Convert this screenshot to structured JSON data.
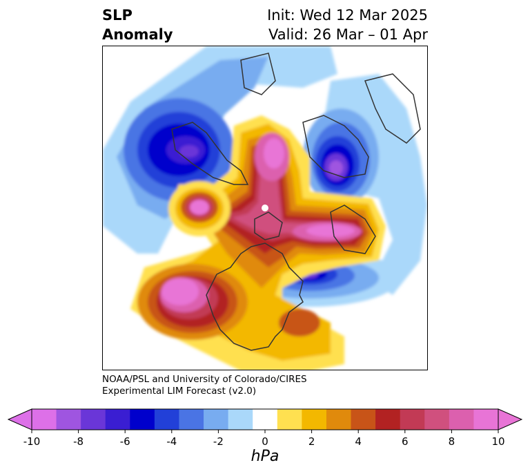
{
  "title": {
    "left_line1": "SLP",
    "left_line2": "Anomaly",
    "right_line1": "Init: Wed 12 Mar 2025",
    "right_line2": "Valid: 26 Mar – 01 Apr"
  },
  "credit": {
    "line1": "NOAA/PSL and University of Colorado/CIRES",
    "line2": "Experimental LIM Forecast (v2.0)"
  },
  "colorbar": {
    "unit": "hPa",
    "ticks": [
      "-10",
      "-8",
      "-6",
      "-4",
      "-2",
      "0",
      "2",
      "4",
      "6",
      "8",
      "10"
    ],
    "colors": [
      "#dd70e8",
      "#9f55e0",
      "#6a36d8",
      "#3a1ed2",
      "#0000cc",
      "#2240d8",
      "#4a74e4",
      "#78acf0",
      "#aad8fa",
      "#ffffff",
      "#ffe050",
      "#f3b800",
      "#e08a0c",
      "#c85418",
      "#b22222",
      "#c23a55",
      "#d0507e",
      "#dc60ae",
      "#e874d6"
    ],
    "under_color": "#dd70e8",
    "over_color": "#e874d6"
  },
  "map": {
    "projection": "north-polar",
    "features": {
      "negative_anomalies": [
        "North Pacific low",
        "Scandinavia/Barents low",
        "Western Atlantic low"
      ],
      "positive_anomalies": [
        "Arctic high",
        "Eastern Pacific high",
        "Western North America high",
        "Siberian high"
      ]
    }
  }
}
